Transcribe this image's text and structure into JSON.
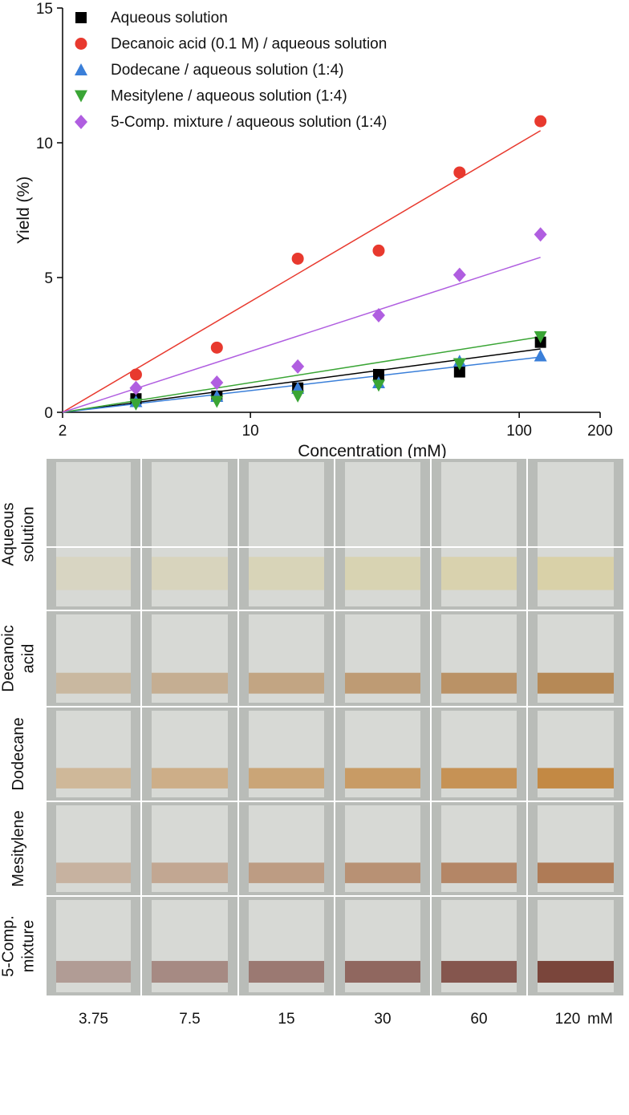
{
  "chart_data": {
    "type": "scatter",
    "xlabel": "Concentration (mM)",
    "ylabel": "Yield (%)",
    "x": [
      3.75,
      7.5,
      15,
      30,
      60,
      120
    ],
    "xlim": [
      2,
      200
    ],
    "xticks": [
      2,
      10,
      100,
      200
    ],
    "xscale": "log",
    "ylim": [
      0,
      15
    ],
    "yticks": [
      0,
      5,
      10,
      15
    ],
    "legend": "upper left",
    "fit_x": [
      2,
      120
    ],
    "series": [
      {
        "name": "Aqueous solution",
        "color": "#000000",
        "marker": "square",
        "values": [
          0.5,
          0.6,
          0.9,
          1.4,
          1.5,
          2.6
        ],
        "fit": [
          0,
          2.35
        ]
      },
      {
        "name": "Decanoic acid (0.1 M) / aqueous solution",
        "color": "#e8392e",
        "marker": "circle",
        "values": [
          1.4,
          2.4,
          5.7,
          6.0,
          8.9,
          10.8
        ],
        "fit": [
          0,
          10.45
        ]
      },
      {
        "name": "Dodecane / aqueous solution (1:4)",
        "color": "#3a7fd9",
        "marker": "triangle-up",
        "values": [
          0.4,
          0.6,
          0.9,
          1.1,
          1.9,
          2.1
        ],
        "fit": [
          0,
          2.05
        ]
      },
      {
        "name": "Mesitylene / aqueous solution (1:4)",
        "color": "#3aa535",
        "marker": "triangle-down",
        "values": [
          0.3,
          0.4,
          0.6,
          1.0,
          1.8,
          2.8
        ],
        "fit": [
          0,
          2.8
        ]
      },
      {
        "name": "5-Comp. mixture / aqueous solution (1:4)",
        "color": "#b05ee0",
        "marker": "diamond",
        "values": [
          0.9,
          1.1,
          1.7,
          3.6,
          5.1,
          6.6
        ],
        "fit": [
          0,
          5.75
        ]
      }
    ]
  },
  "photo_grid": {
    "rows": [
      [
        "Aqueous",
        "solution"
      ],
      [
        "Decanoic",
        "acid"
      ],
      [
        "Dodecane"
      ],
      [
        "Mesitylene"
      ],
      [
        "5-Comp.",
        "mixture"
      ]
    ],
    "columns": [
      "3.75",
      "7.5",
      "15",
      "30",
      "60",
      "120"
    ],
    "unit": "mM"
  }
}
